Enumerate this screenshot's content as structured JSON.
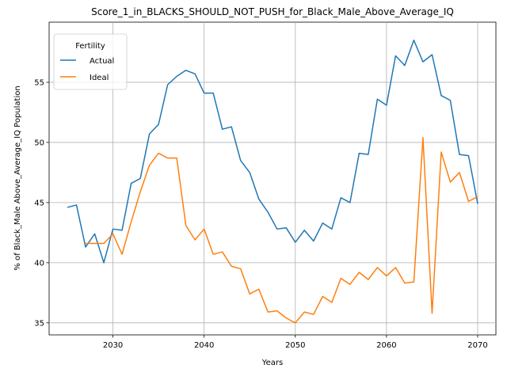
{
  "chart_data": {
    "type": "line",
    "title": "Score_1_in_BLACKS_SHOULD_NOT_PUSH_for_Black_Male_Above_Average_IQ",
    "xlabel": "Years",
    "ylabel": "% of Black_Male Above_Average_IQ Population",
    "xlim": [
      2023,
      2072
    ],
    "ylim": [
      34,
      60
    ],
    "xticks": [
      2030,
      2040,
      2050,
      2060,
      2070
    ],
    "yticks": [
      35,
      40,
      45,
      50,
      55
    ],
    "grid": true,
    "legend": {
      "title": "Fertility",
      "placement": "top-left"
    },
    "x": [
      2025,
      2026,
      2027,
      2028,
      2029,
      2030,
      2031,
      2032,
      2033,
      2034,
      2035,
      2036,
      2037,
      2038,
      2039,
      2040,
      2041,
      2042,
      2043,
      2044,
      2045,
      2046,
      2047,
      2048,
      2049,
      2050,
      2051,
      2052,
      2053,
      2054,
      2055,
      2056,
      2057,
      2058,
      2059,
      2060,
      2061,
      2062,
      2063,
      2064,
      2065,
      2066,
      2067,
      2068,
      2069,
      2070
    ],
    "series": [
      {
        "name": "Actual",
        "color": "#1f77b4",
        "values": [
          44.6,
          44.8,
          41.3,
          42.4,
          40.0,
          42.8,
          42.7,
          46.6,
          47.0,
          50.7,
          51.5,
          54.8,
          55.5,
          56.0,
          55.7,
          54.1,
          54.1,
          51.1,
          51.3,
          48.5,
          47.5,
          45.3,
          44.2,
          42.8,
          42.9,
          41.7,
          42.7,
          41.8,
          43.3,
          42.8,
          45.4,
          45.0,
          49.1,
          49.0,
          53.6,
          53.1,
          57.2,
          56.4,
          58.5,
          56.7,
          57.3,
          53.9,
          53.5,
          49.0,
          48.9,
          44.9
        ]
      },
      {
        "name": "Ideal",
        "color": "#ff7f0e",
        "values": [
          null,
          null,
          41.6,
          41.6,
          41.6,
          42.4,
          40.7,
          43.4,
          45.9,
          48.1,
          49.1,
          48.7,
          48.7,
          43.1,
          41.9,
          42.8,
          40.7,
          40.9,
          39.7,
          39.5,
          37.4,
          37.8,
          35.9,
          36.0,
          35.4,
          35.0,
          35.9,
          35.7,
          37.2,
          36.7,
          38.7,
          38.2,
          39.2,
          38.6,
          39.6,
          38.9,
          39.6,
          38.3,
          38.4,
          50.4,
          35.8,
          49.2,
          46.7,
          47.5,
          45.1,
          45.5
        ]
      }
    ]
  }
}
